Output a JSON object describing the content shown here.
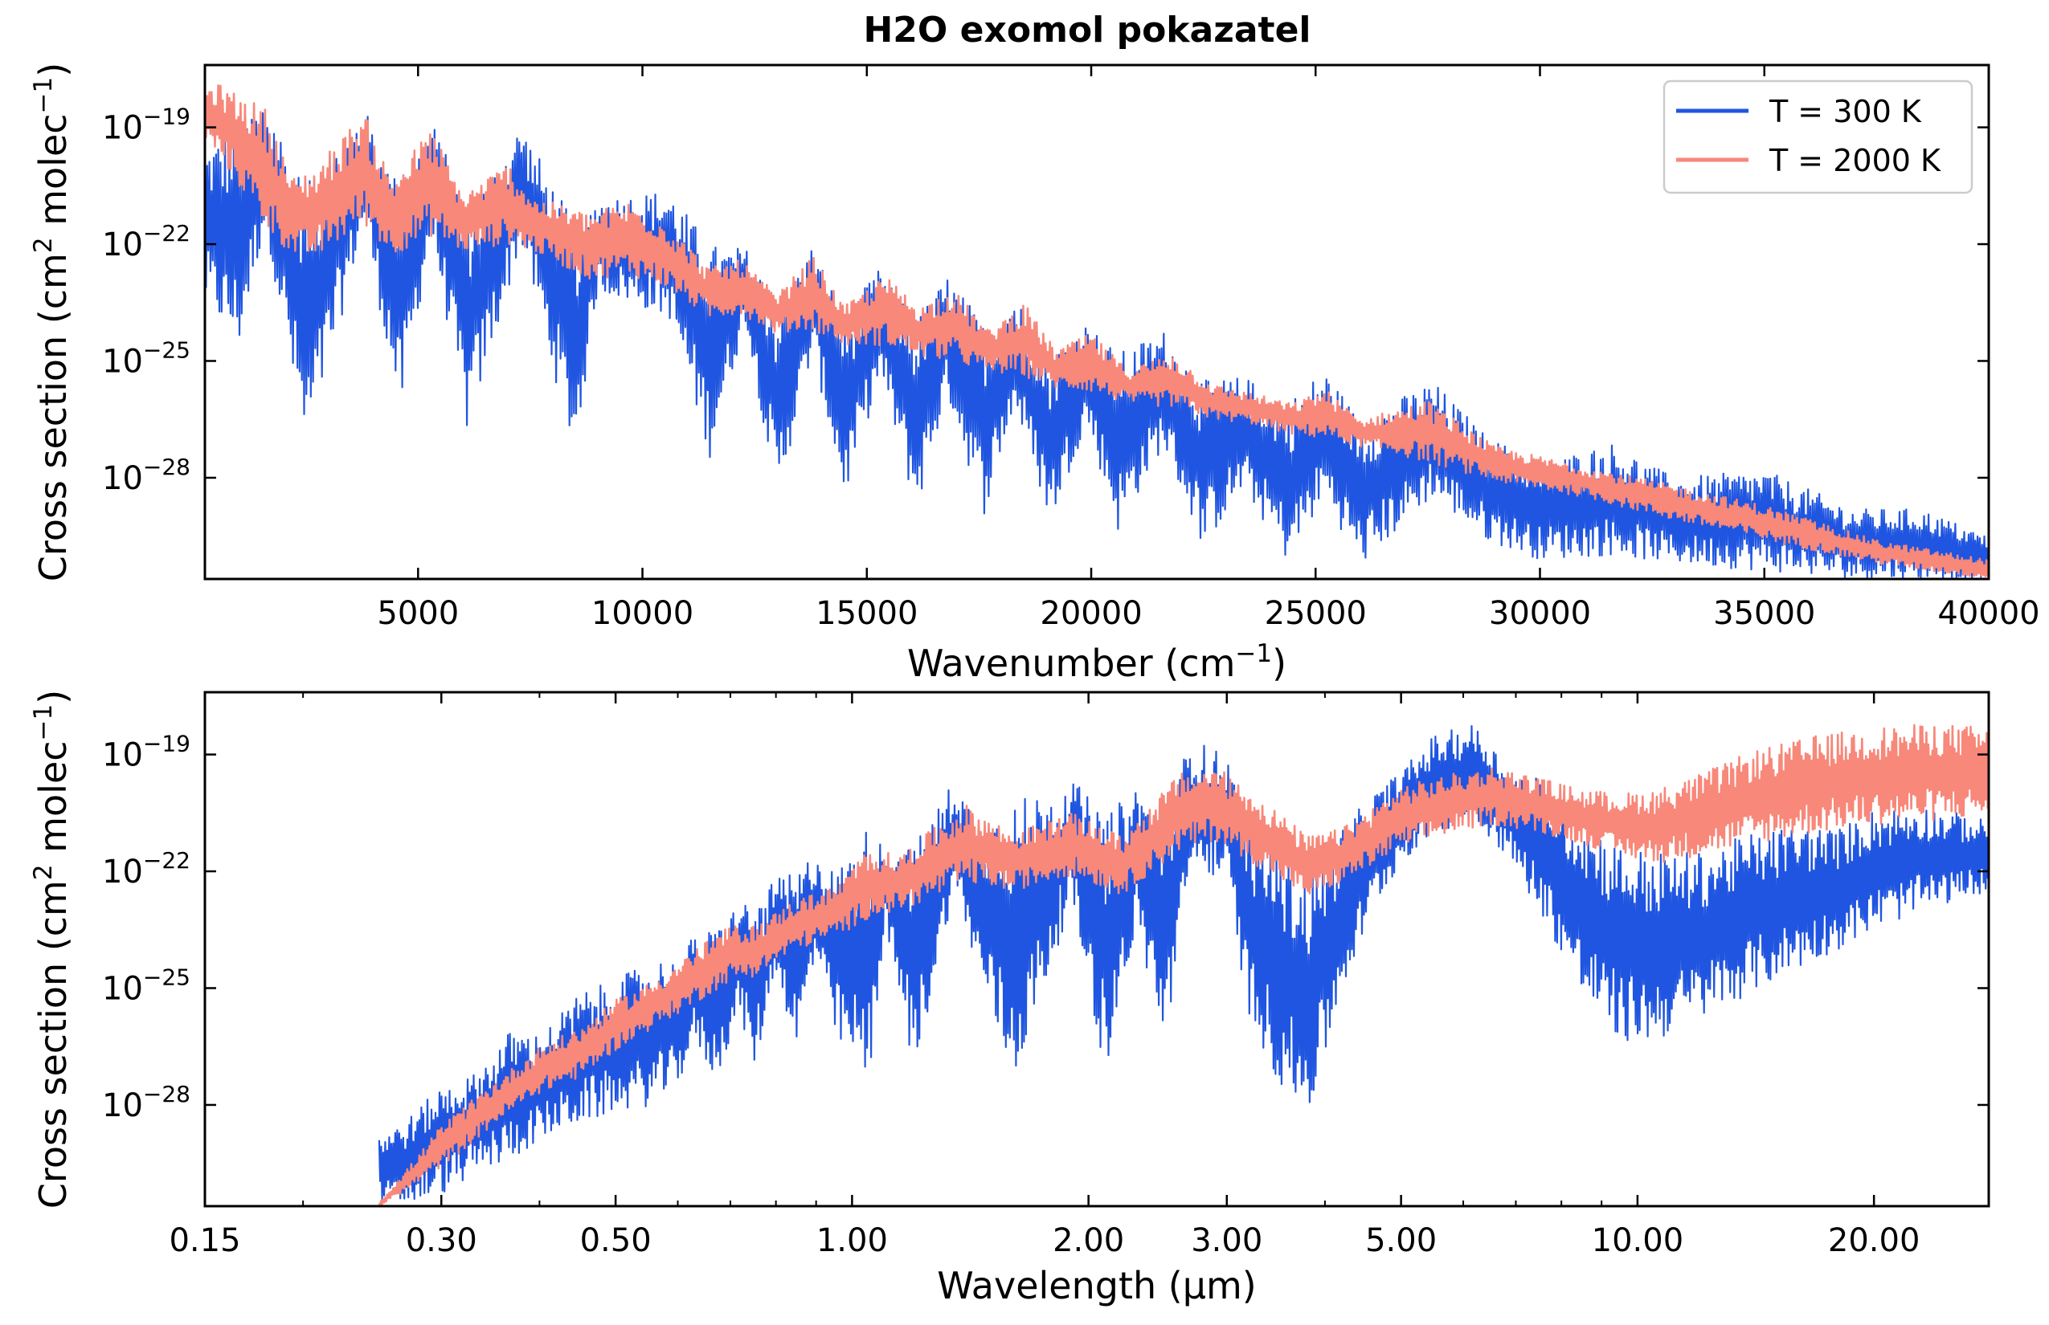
{
  "chart_data": [
    {
      "type": "line",
      "title": "H2O exomol pokazatel",
      "xlabel": "Wavenumber (cm",
      "xlabel_sup": "−1",
      "xlabel_end": ")",
      "ylabel": "Cross section (cm",
      "ylabel_sup1": "2",
      "ylabel_mid": " molec",
      "ylabel_sup2": "−1",
      "ylabel_end": ")",
      "xscale": "linear",
      "yscale": "log",
      "xlim": [
        250,
        40000
      ],
      "ylim_exp": [
        -30.6,
        -17.4
      ],
      "xticks": [
        5000,
        10000,
        15000,
        20000,
        25000,
        30000,
        35000,
        40000
      ],
      "xtick_labels": [
        "5000",
        "10000",
        "15000",
        "20000",
        "25000",
        "30000",
        "35000",
        "40000"
      ],
      "yticks_exp": [
        -19,
        -22,
        -25,
        -28
      ],
      "ytick_bases": [
        "10",
        "10",
        "10",
        "10"
      ],
      "ytick_exps": [
        "−19",
        "−22",
        "−25",
        "−28"
      ],
      "legend_position": "top-right",
      "series": [
        {
          "name": "T = 300 K",
          "color": "#1f55e0",
          "x": [
            250,
            1000,
            1600,
            2500,
            3800,
            4600,
            5300,
            6100,
            7300,
            8500,
            9000,
            10600,
            11500,
            12300,
            13000,
            13800,
            14500,
            15300,
            16100,
            16800,
            17600,
            18300,
            19100,
            19900,
            20600,
            21600,
            22500,
            23400,
            24400,
            25200,
            26000,
            27600,
            28800,
            30000,
            31600,
            33000,
            35000,
            37000,
            38500,
            40000
          ],
          "upper_exp": [
            -19.5,
            -18.8,
            -18.2,
            -20.5,
            -18.5,
            -20.5,
            -18.8,
            -21.0,
            -18.9,
            -21.5,
            -20.8,
            -20.6,
            -22.0,
            -22.1,
            -23.5,
            -22.0,
            -23.8,
            -22.6,
            -23.9,
            -22.8,
            -24.0,
            -23.3,
            -24.8,
            -24.0,
            -24.8,
            -24.2,
            -25.5,
            -25.4,
            -26.0,
            -25.2,
            -26.5,
            -25.5,
            -26.9,
            -27.6,
            -27.1,
            -28.0,
            -27.8,
            -28.8,
            -28.8,
            -29.5
          ],
          "lower_exp": [
            -23.5,
            -24.8,
            -21.5,
            -27.6,
            -21.5,
            -26.5,
            -21.8,
            -26.9,
            -22.0,
            -27.5,
            -23.2,
            -23.9,
            -27.5,
            -24.0,
            -28.6,
            -24.8,
            -28.6,
            -25.4,
            -28.9,
            -25.9,
            -29.0,
            -26.2,
            -29.2,
            -26.6,
            -29.4,
            -27.2,
            -29.8,
            -28.3,
            -30.2,
            -28.5,
            -30.3,
            -28.5,
            -29.6,
            -30.1,
            -30.0,
            -30.2,
            -30.4,
            -30.6,
            -30.6,
            -30.6
          ]
        },
        {
          "name": "T = 2000 K",
          "color": "#f7887a",
          "x": [
            250,
            600,
            1600,
            2200,
            2700,
            3800,
            4400,
            5300,
            6000,
            7000,
            7600,
            8800,
            9700,
            10500,
            11500,
            12200,
            13000,
            13800,
            14500,
            15400,
            16200,
            16900,
            17700,
            18500,
            19200,
            20000,
            20800,
            21800,
            22700,
            23500,
            24500,
            25200,
            26000,
            27500,
            29000,
            31000,
            33000,
            35000,
            37500,
            40000
          ],
          "upper_exp": [
            -17.9,
            -17.9,
            -18.5,
            -20.3,
            -20.0,
            -18.6,
            -20.3,
            -19.0,
            -20.7,
            -19.9,
            -20.8,
            -21.2,
            -20.9,
            -21.4,
            -22.6,
            -22.4,
            -23.3,
            -22.3,
            -23.6,
            -22.8,
            -23.6,
            -23.1,
            -24.2,
            -23.5,
            -24.7,
            -24.3,
            -25.2,
            -24.8,
            -25.6,
            -25.8,
            -26.1,
            -25.7,
            -26.5,
            -26.0,
            -27.2,
            -27.7,
            -28.2,
            -28.7,
            -29.6,
            -30.1
          ],
          "lower_exp": [
            -19.4,
            -19.8,
            -21.6,
            -22.3,
            -22.4,
            -21.5,
            -22.3,
            -21.8,
            -22.2,
            -22.0,
            -22.2,
            -22.9,
            -22.8,
            -23.1,
            -23.9,
            -23.8,
            -24.3,
            -24.2,
            -24.6,
            -24.6,
            -24.9,
            -25.0,
            -25.3,
            -25.4,
            -25.7,
            -25.8,
            -26.1,
            -26.2,
            -26.5,
            -26.6,
            -26.9,
            -27.0,
            -27.2,
            -27.6,
            -28.1,
            -28.5,
            -29.1,
            -29.6,
            -30.2,
            -30.6
          ]
        }
      ]
    },
    {
      "type": "line",
      "xlabel": "Wavelength (µm)",
      "ylabel": "Cross section (cm",
      "ylabel_sup1": "2",
      "ylabel_mid": " molec",
      "ylabel_sup2": "−1",
      "ylabel_end": ")",
      "xscale": "log",
      "yscale": "log",
      "xlim": [
        0.15,
        28
      ],
      "ylim_exp": [
        -30.6,
        -17.4
      ],
      "xticks": [
        0.15,
        0.3,
        0.5,
        1.0,
        2.0,
        3.0,
        5.0,
        10.0,
        20.0
      ],
      "xtick_labels": [
        "0.15",
        "0.30",
        "0.50",
        "1.00",
        "2.00",
        "3.00",
        "5.00",
        "10.00",
        "20.00"
      ],
      "yticks_exp": [
        -19,
        -22,
        -25,
        -28
      ],
      "ytick_bases": [
        "10",
        "10",
        "10",
        "10"
      ],
      "ytick_exps": [
        "−19",
        "−22",
        "−25",
        "−28"
      ],
      "series": [
        {
          "name": "T = 300 K",
          "color": "#1f55e0",
          "x": [
            0.25,
            0.27,
            0.3,
            0.33,
            0.37,
            0.4,
            0.45,
            0.5,
            0.56,
            0.6,
            0.63,
            0.67,
            0.72,
            0.75,
            0.8,
            0.85,
            0.9,
            0.95,
            1.05,
            1.1,
            1.2,
            1.35,
            1.45,
            1.6,
            1.9,
            2.1,
            2.3,
            2.5,
            2.7,
            3.0,
            3.2,
            3.5,
            3.8,
            4.2,
            4.6,
            5.0,
            5.5,
            6.2,
            6.8,
            7.5,
            8.5,
            9.5,
            10.5,
            12.0,
            14.0,
            16.0,
            18.0,
            20.0,
            23.0,
            28.0
          ],
          "upper_exp": [
            -28.7,
            -28.4,
            -27.5,
            -27.2,
            -26.0,
            -26.2,
            -25.1,
            -24.8,
            -24.2,
            -24.3,
            -23.6,
            -23.5,
            -22.7,
            -22.9,
            -22.2,
            -22.0,
            -21.4,
            -22.0,
            -20.8,
            -21.4,
            -21.3,
            -19.6,
            -20.6,
            -20.2,
            -19.6,
            -20.6,
            -19.8,
            -20.3,
            -18.6,
            -19.0,
            -20.8,
            -21.3,
            -22.2,
            -20.9,
            -20.0,
            -19.4,
            -18.5,
            -18.2,
            -19.2,
            -19.6,
            -20.6,
            -21.3,
            -21.5,
            -21.5,
            -21.0,
            -20.8,
            -20.9,
            -20.4,
            -20.3,
            -20.7
          ],
          "lower_exp": [
            -30.6,
            -30.6,
            -30.3,
            -29.8,
            -29.4,
            -28.9,
            -28.5,
            -28.2,
            -28.0,
            -27.5,
            -26.4,
            -27.4,
            -25.6,
            -27.2,
            -24.5,
            -26.7,
            -24.2,
            -26.3,
            -27.6,
            -23.4,
            -27.2,
            -22.4,
            -24.8,
            -27.5,
            -22.8,
            -27.2,
            -23.5,
            -26.5,
            -22.0,
            -22.2,
            -25.8,
            -27.5,
            -28.4,
            -25.2,
            -23.0,
            -21.8,
            -21.0,
            -20.7,
            -21.6,
            -23.0,
            -25.3,
            -26.4,
            -26.4,
            -25.8,
            -25.1,
            -24.5,
            -24.0,
            -23.5,
            -23.0,
            -22.5
          ]
        },
        {
          "name": "T = 2000 K",
          "color": "#f7887a",
          "x": [
            0.25,
            0.3,
            0.35,
            0.4,
            0.45,
            0.5,
            0.56,
            0.63,
            0.7,
            0.75,
            0.85,
            0.95,
            1.05,
            1.15,
            1.3,
            1.4,
            1.6,
            1.9,
            2.2,
            2.6,
            2.9,
            3.3,
            3.8,
            4.2,
            5.0,
            5.8,
            6.5,
            7.5,
            8.5,
            9.5,
            10.5,
            12.0,
            14.0,
            17.0,
            20.0,
            24.0,
            28.0
          ],
          "upper_exp": [
            -30.5,
            -28.5,
            -27.4,
            -26.5,
            -26.0,
            -25.3,
            -24.8,
            -24.0,
            -23.4,
            -23.4,
            -22.7,
            -22.4,
            -21.4,
            -21.6,
            -20.7,
            -20.3,
            -21.0,
            -20.5,
            -21.1,
            -19.5,
            -19.3,
            -20.1,
            -21.1,
            -20.9,
            -19.8,
            -19.5,
            -19.3,
            -19.6,
            -19.9,
            -20.0,
            -19.9,
            -19.5,
            -18.9,
            -18.5,
            -18.3,
            -18.2,
            -18.3
          ],
          "lower_exp": [
            -30.6,
            -29.6,
            -28.5,
            -27.7,
            -27.3,
            -26.6,
            -26.0,
            -25.4,
            -24.8,
            -24.7,
            -24.0,
            -23.7,
            -23.2,
            -23.0,
            -22.6,
            -22.3,
            -22.5,
            -22.1,
            -22.6,
            -21.5,
            -21.2,
            -21.9,
            -22.7,
            -22.3,
            -21.4,
            -21.0,
            -20.8,
            -21.0,
            -21.3,
            -21.6,
            -21.8,
            -21.6,
            -21.3,
            -21.0,
            -20.8,
            -20.7,
            -20.6
          ]
        }
      ]
    }
  ]
}
